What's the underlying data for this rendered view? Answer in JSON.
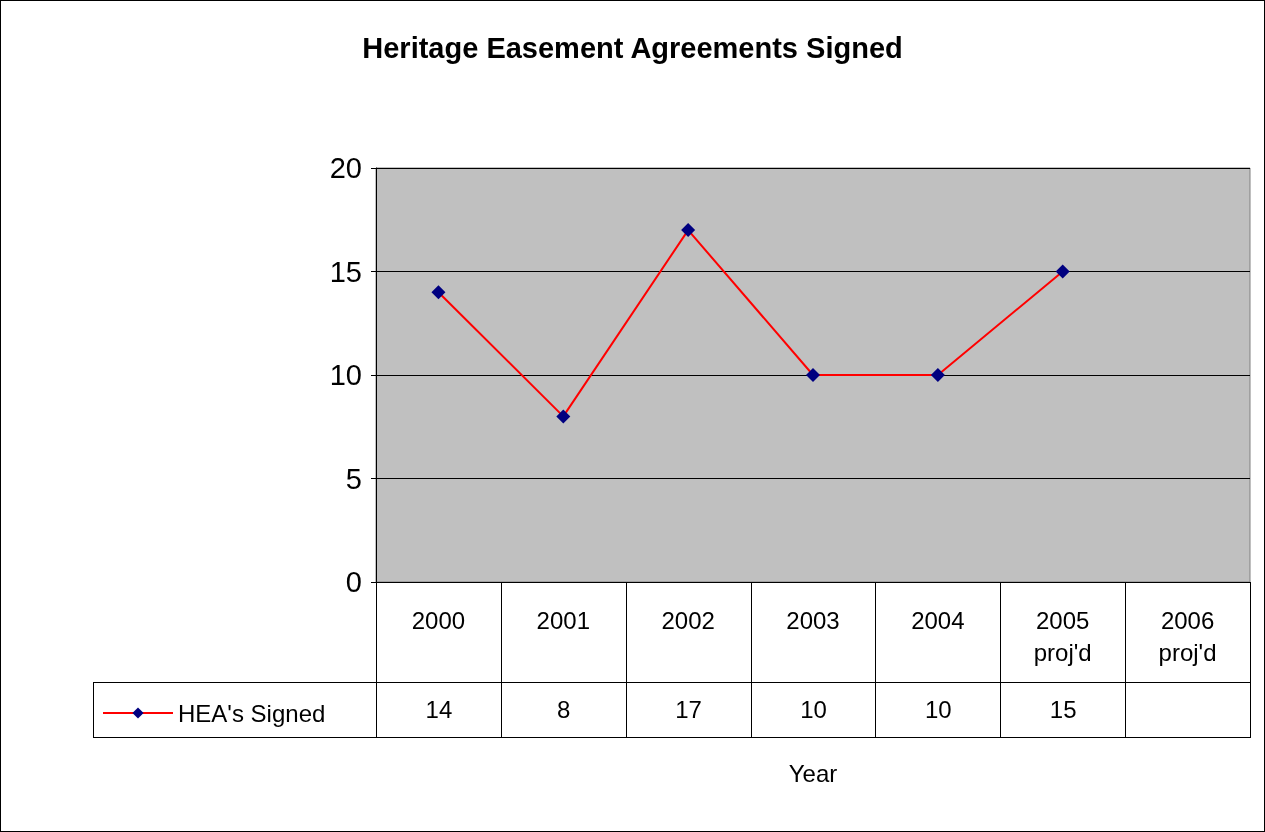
{
  "chart_data": {
    "type": "line",
    "title": "Heritage Easement Agreements Signed",
    "xlabel": "Year",
    "categories": [
      "2000",
      "2001",
      "2002",
      "2003",
      "2004",
      "2005 proj'd",
      "2006 proj'd"
    ],
    "series": [
      {
        "name": "HEA's Signed",
        "color": "#ff0000",
        "colors": [
          "#000080",
          "#000080",
          "#000080",
          "#000080",
          "#000080",
          "#000080",
          "#000080"
        ],
        "values": [
          14,
          8,
          17,
          10,
          10,
          15,
          null
        ]
      }
    ],
    "ylim": [
      0,
      20
    ],
    "yticks": [
      0,
      5,
      10,
      15,
      20
    ],
    "grid": "y",
    "marker": "diamond",
    "line_style": "solid",
    "legend": "bottom left",
    "data_labels": true
  }
}
